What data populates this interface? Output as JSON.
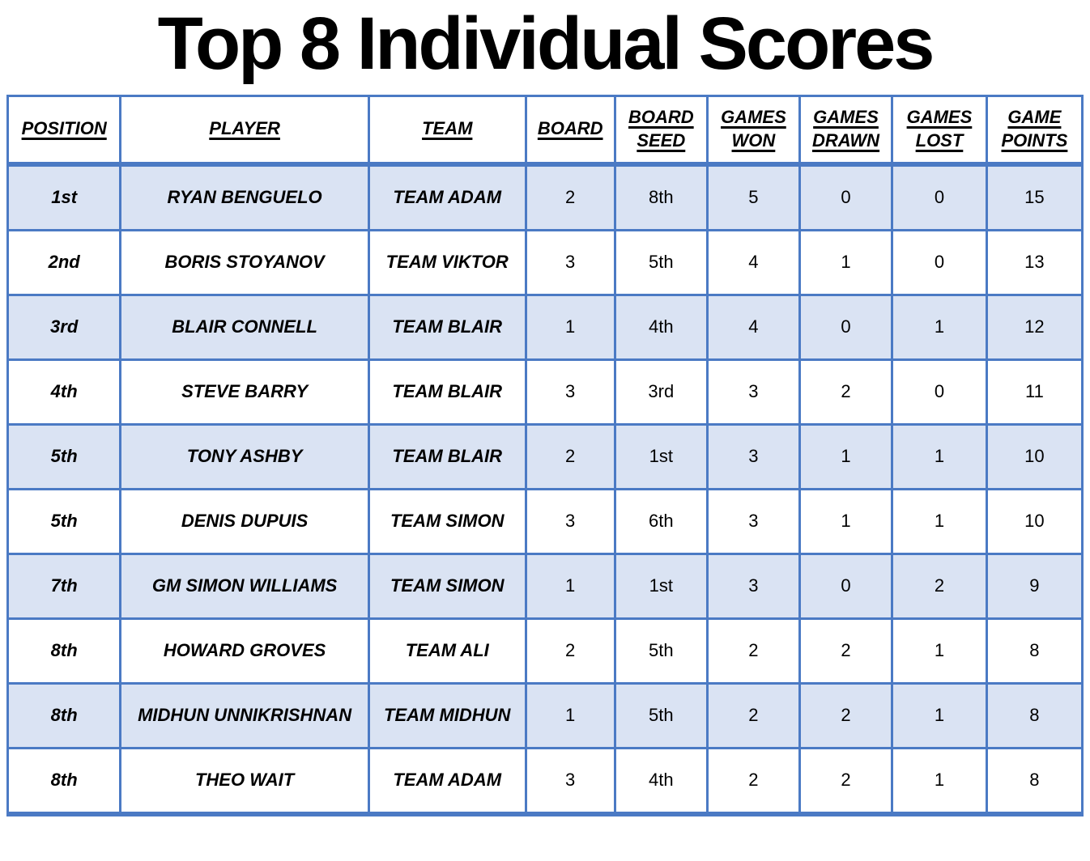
{
  "chart_data": {
    "type": "table",
    "title": "Top 8 Individual Scores",
    "columns": [
      {
        "key": "position",
        "label": "POSITION"
      },
      {
        "key": "player",
        "label": "PLAYER"
      },
      {
        "key": "team",
        "label": "TEAM"
      },
      {
        "key": "board",
        "label": "BOARD"
      },
      {
        "key": "board_seed",
        "label": "BOARD SEED"
      },
      {
        "key": "games_won",
        "label": "GAMES WON"
      },
      {
        "key": "games_drawn",
        "label": "GAMES DRAWN"
      },
      {
        "key": "games_lost",
        "label": "GAMES LOST"
      },
      {
        "key": "game_points",
        "label": "GAME POINTS"
      }
    ],
    "rows": [
      [
        "1st",
        "RYAN BENGUELO",
        "TEAM ADAM",
        "2",
        "8th",
        "5",
        "0",
        "0",
        "15"
      ],
      [
        "2nd",
        "BORIS STOYANOV",
        "TEAM VIKTOR",
        "3",
        "5th",
        "4",
        "1",
        "0",
        "13"
      ],
      [
        "3rd",
        "BLAIR CONNELL",
        "TEAM BLAIR",
        "1",
        "4th",
        "4",
        "0",
        "1",
        "12"
      ],
      [
        "4th",
        "STEVE BARRY",
        "TEAM BLAIR",
        "3",
        "3rd",
        "3",
        "2",
        "0",
        "11"
      ],
      [
        "5th",
        "TONY ASHBY",
        "TEAM BLAIR",
        "2",
        "1st",
        "3",
        "1",
        "1",
        "10"
      ],
      [
        "5th",
        "DENIS DUPUIS",
        "TEAM SIMON",
        "3",
        "6th",
        "3",
        "1",
        "1",
        "10"
      ],
      [
        "7th",
        "GM SIMON WILLIAMS",
        "TEAM SIMON",
        "1",
        "1st",
        "3",
        "0",
        "2",
        "9"
      ],
      [
        "8th",
        "HOWARD GROVES",
        "TEAM ALI",
        "2",
        "5th",
        "2",
        "2",
        "1",
        "8"
      ],
      [
        "8th",
        "MIDHUN UNNIKRISHNAN",
        "TEAM MIDHUN",
        "1",
        "5th",
        "2",
        "2",
        "1",
        "8"
      ],
      [
        "8th",
        "THEO WAIT",
        "TEAM ADAM",
        "3",
        "4th",
        "2",
        "2",
        "1",
        "8"
      ]
    ],
    "layout_hints": {
      "alternating_rows": true,
      "first_data_row_shaded": true,
      "header_underlined": true
    }
  },
  "colors": {
    "row_shaded": "#dae3f3",
    "row_plain": "#ffffff",
    "grid_border": "#4b7ac4",
    "text": "#000000",
    "title": "#000000"
  }
}
